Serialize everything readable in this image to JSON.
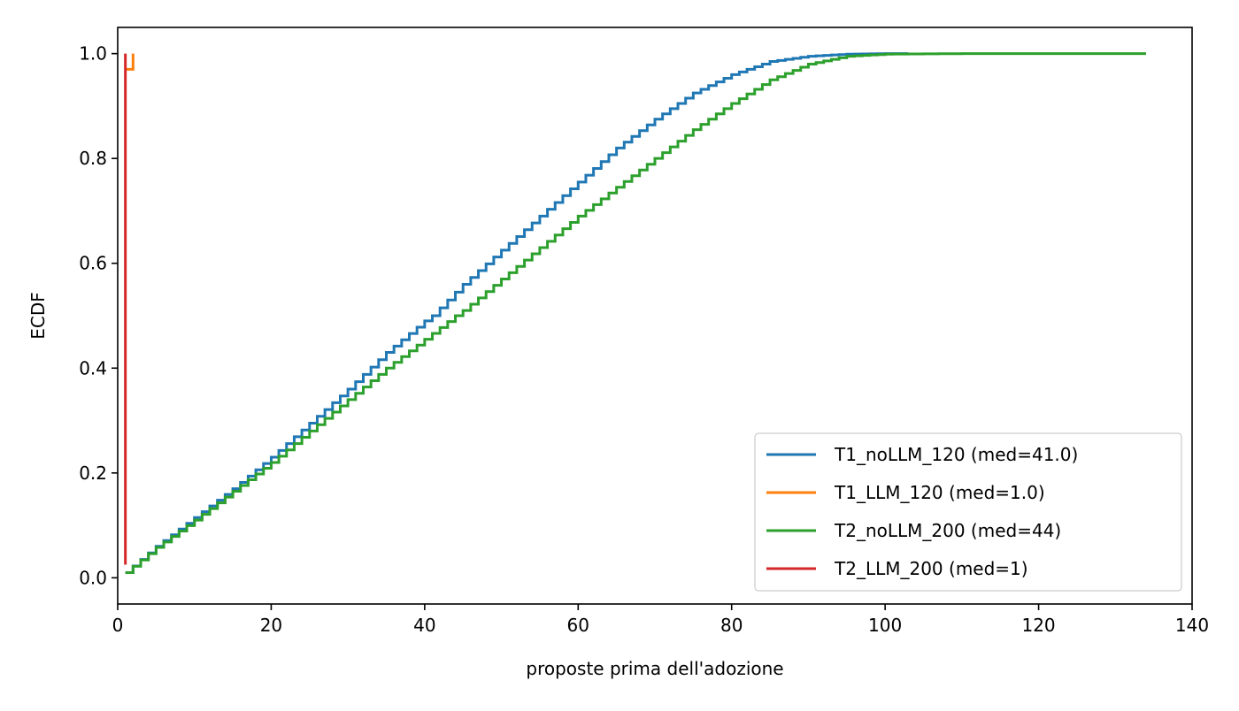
{
  "chart_data": {
    "type": "line",
    "subtype": "ecdf-step",
    "title": "",
    "xlabel": "proposte prima dell'adozione",
    "ylabel": "ECDF",
    "xlim": [
      0,
      140
    ],
    "ylim": [
      -0.05,
      1.05
    ],
    "xticks": [
      0,
      20,
      40,
      60,
      80,
      100,
      120,
      140
    ],
    "xtick_labels": [
      "0",
      "20",
      "40",
      "60",
      "80",
      "100",
      "120",
      "140"
    ],
    "yticks": [
      0.0,
      0.2,
      0.4,
      0.6,
      0.8,
      1.0
    ],
    "ytick_labels": [
      "0.0",
      "0.2",
      "0.4",
      "0.6",
      "0.8",
      "1.0"
    ],
    "grid": false,
    "legend_position": "lower right",
    "series": [
      {
        "name": "T1_noLLM_120 (med=41.0)",
        "color": "#1f77b4",
        "x": [
          1,
          5,
          10,
          15,
          20,
          25,
          30,
          35,
          40,
          41,
          45,
          50,
          55,
          60,
          65,
          70,
          75,
          80,
          85,
          90,
          95,
          100,
          103
        ],
        "y": [
          0.01,
          0.06,
          0.115,
          0.17,
          0.23,
          0.295,
          0.36,
          0.43,
          0.49,
          0.5,
          0.56,
          0.625,
          0.69,
          0.755,
          0.82,
          0.875,
          0.925,
          0.96,
          0.985,
          0.995,
          0.999,
          1.0,
          1.0
        ]
      },
      {
        "name": "T1_LLM_120 (med=1.0)",
        "color": "#ff7f0e",
        "x": [
          1,
          2
        ],
        "y": [
          0.97,
          1.0
        ]
      },
      {
        "name": "T2_noLLM_200 (med=44)",
        "color": "#2ca02c",
        "x": [
          1,
          5,
          10,
          15,
          20,
          25,
          30,
          35,
          40,
          44,
          45,
          50,
          55,
          60,
          65,
          70,
          75,
          80,
          85,
          90,
          95,
          100,
          110,
          120,
          134
        ],
        "y": [
          0.01,
          0.058,
          0.11,
          0.165,
          0.22,
          0.28,
          0.34,
          0.4,
          0.455,
          0.5,
          0.51,
          0.57,
          0.63,
          0.69,
          0.745,
          0.8,
          0.855,
          0.905,
          0.95,
          0.98,
          0.995,
          0.999,
          1.0,
          1.0,
          1.0
        ]
      },
      {
        "name": "T2_LLM_200 (med=1)",
        "color": "#d62728",
        "x": [
          1,
          1
        ],
        "y": [
          0.025,
          1.0
        ]
      }
    ]
  }
}
